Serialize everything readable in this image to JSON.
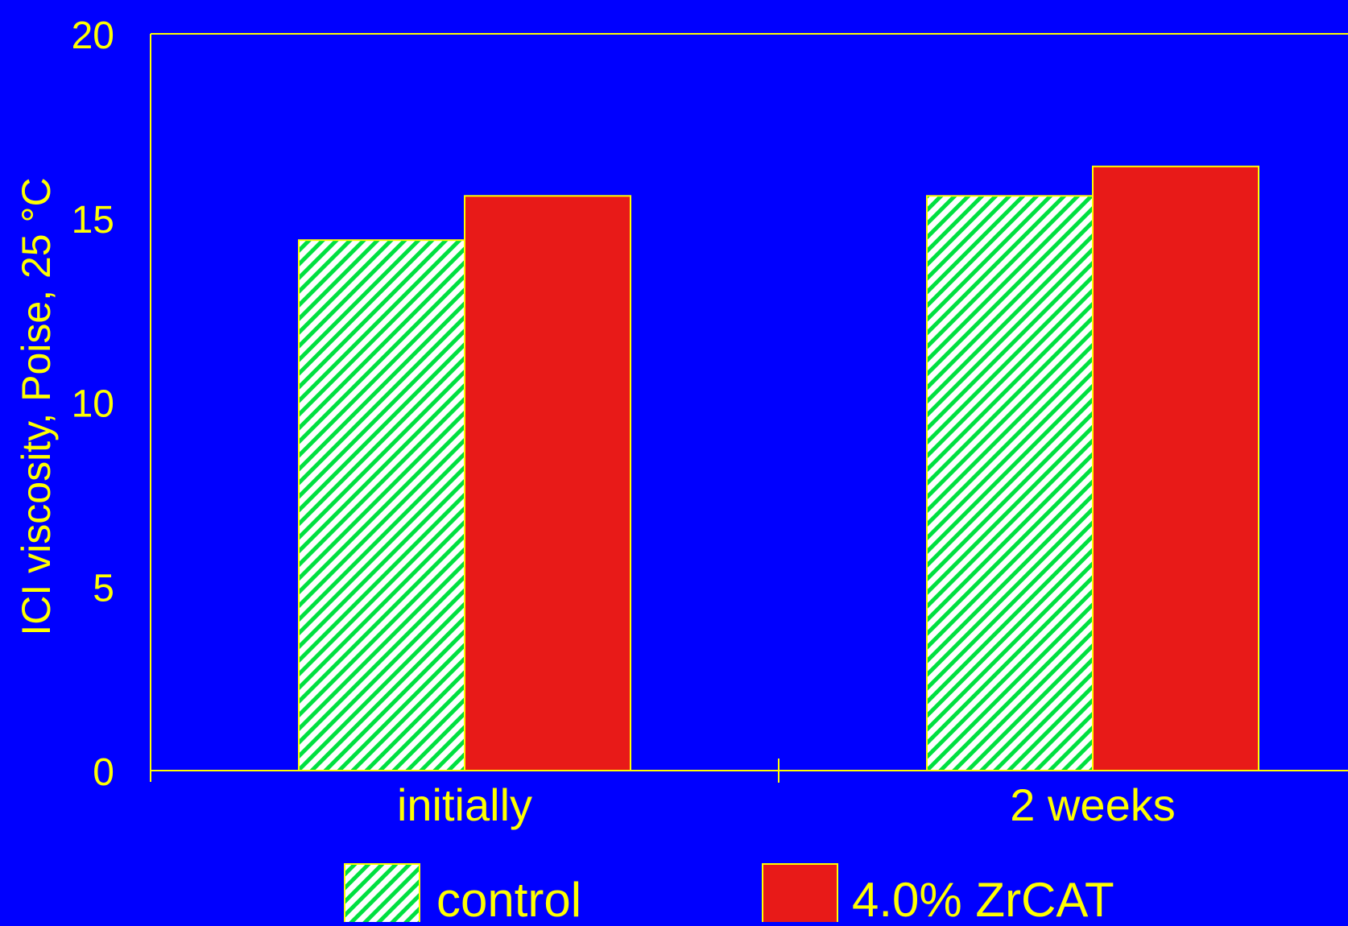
{
  "colors": {
    "background": "#0000FF",
    "axis": "#FFFF00",
    "text": "#FFFF00",
    "control_stripe_a": "#00E040",
    "control_stripe_b": "#FFFFFF",
    "zrcat": "#E81A18",
    "bar_edge": "#FFFF00"
  },
  "chart_data": {
    "type": "bar",
    "title": "",
    "xlabel": "",
    "ylabel": "ICI viscosity, Poise, 25 °C",
    "ylim": [
      0,
      20
    ],
    "yticks": [
      "0",
      "5",
      "10",
      "15",
      "20"
    ],
    "categories": [
      "initially",
      "2 weeks"
    ],
    "series": [
      {
        "name": "control",
        "values": [
          14.4,
          15.6
        ],
        "fill": "hatch"
      },
      {
        "name": "4.0% ZrCAT",
        "values": [
          15.6,
          16.4
        ],
        "fill": "solid"
      }
    ],
    "legend_position": "bottom",
    "grid": false
  }
}
